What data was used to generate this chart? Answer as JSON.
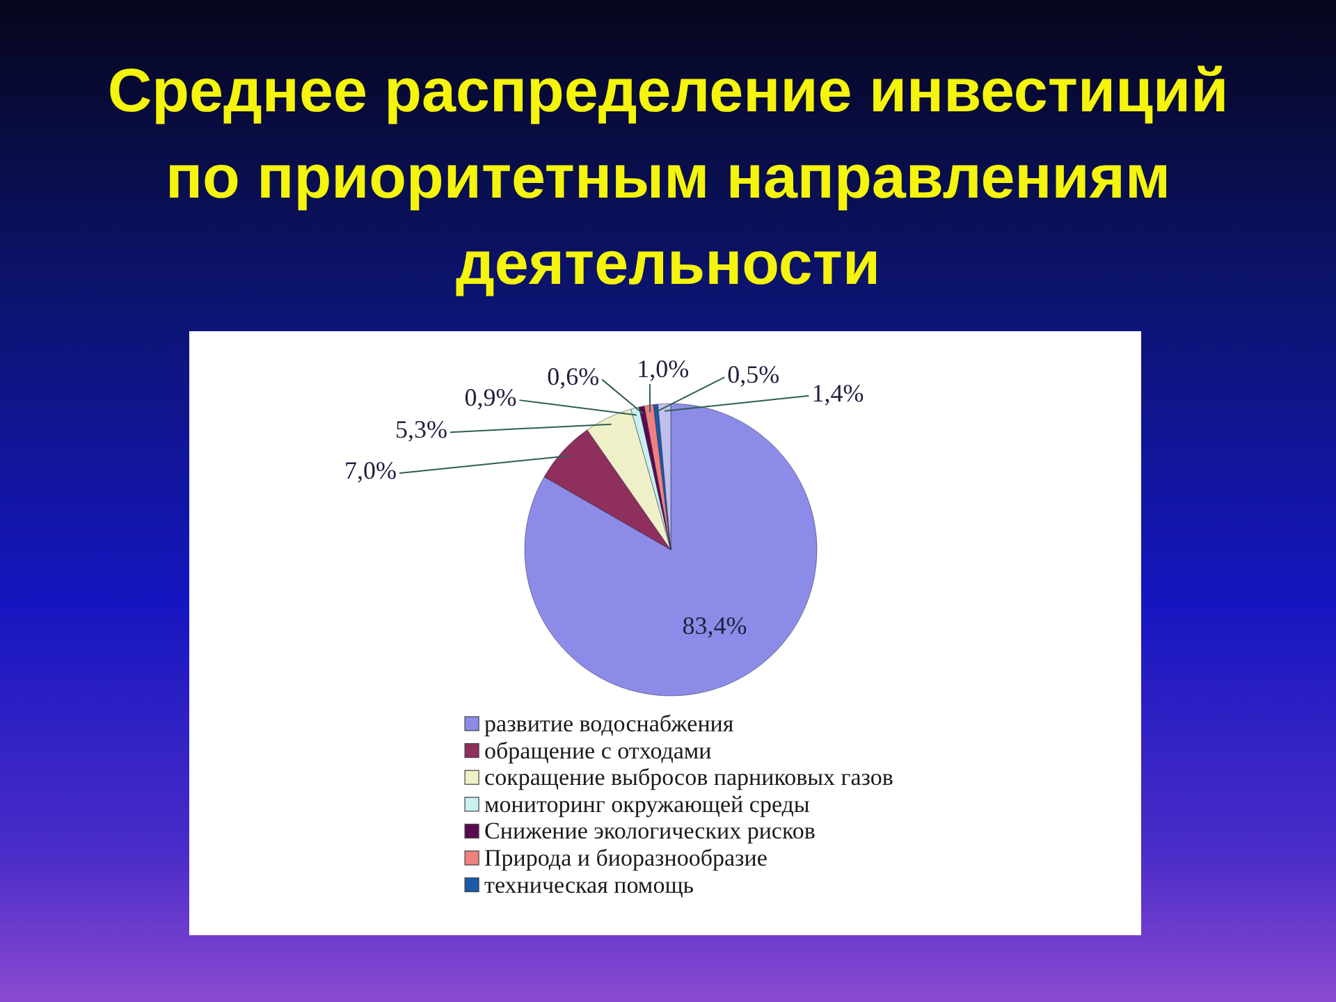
{
  "chart_data": {
    "type": "pie",
    "title": "Среднее распределение инвестиций по приоритетным направлениям деятельности",
    "categories": [
      "развитие водоснабжения",
      "обращение с отходами",
      "сокращение выбросов парниковых газов",
      "мониторинг окружающей среды",
      "Снижение экологических рисков",
      "Природа и биоразнообразие",
      "техническая помощь",
      null
    ],
    "values": [
      83.4,
      7.0,
      5.3,
      0.9,
      0.6,
      1.0,
      0.5,
      1.4
    ],
    "colors": [
      "#8c8ce8",
      "#8e2f5e",
      "#f0f0c8",
      "#c8f0f0",
      "#5a0a50",
      "#f08080",
      "#1a5aa8",
      "#c0c0ee"
    ],
    "value_labels": [
      "83,4%",
      "7,0%",
      "5,3%",
      "0,9%",
      "0,6%",
      "1,0%",
      "0,5%",
      "1,4%"
    ],
    "legend": "bottom"
  }
}
